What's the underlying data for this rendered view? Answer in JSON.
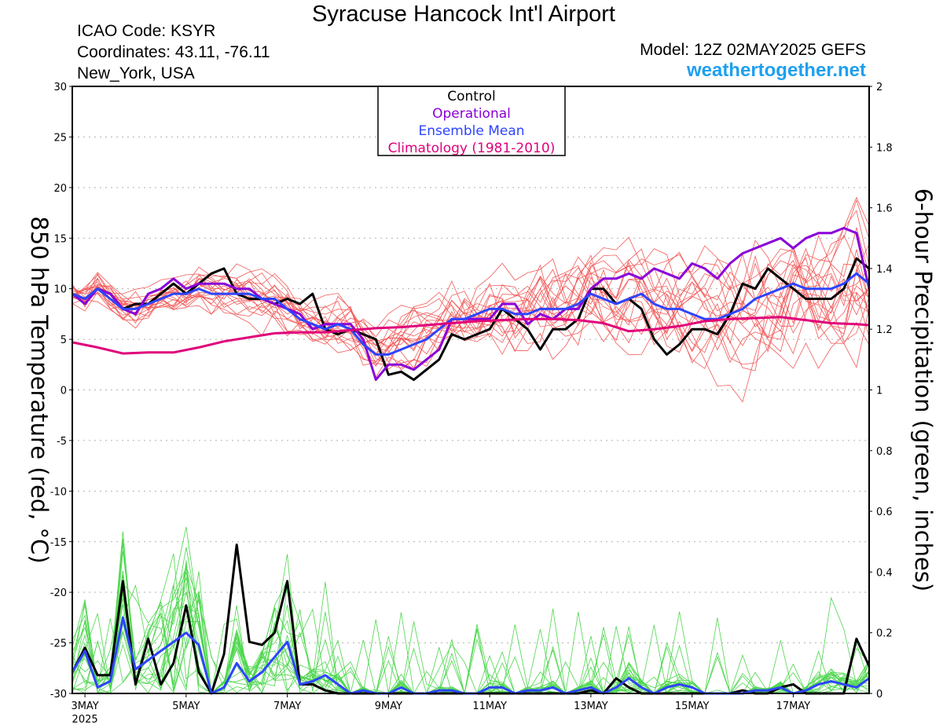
{
  "header": {
    "title": "Syracuse Hancock Int'l Airport",
    "icao": "ICAO Code: KSYR",
    "coords": "Coordinates: 43.11, -76.11",
    "location": "New_York, USA",
    "model": "Model: 12Z 02MAY2025 GEFS",
    "site": "weathertogether.net"
  },
  "chart_data": {
    "type": "line",
    "title": "Syracuse Hancock Int'l Airport",
    "ylabel": "850 hPa Temperature (red, °C)",
    "y2label": "6-hour Precipitation (green, inches)",
    "ylim": [
      -30,
      30
    ],
    "y2lim": [
      0,
      2
    ],
    "xlim": [
      2.75,
      18.5
    ],
    "yticks": [
      30,
      25,
      20,
      15,
      10,
      5,
      0,
      -5,
      -10,
      -15,
      -20,
      -25,
      -30
    ],
    "y2ticks": [
      2,
      1.8,
      1.6,
      1.4,
      1.2,
      1,
      0.8,
      0.6,
      0.4,
      0.2,
      0
    ],
    "xticks": [
      {
        "x": 3,
        "label": "3MAY"
      },
      {
        "x": 5,
        "label": "5MAY"
      },
      {
        "x": 7,
        "label": "7MAY"
      },
      {
        "x": 9,
        "label": "9MAY"
      },
      {
        "x": 11,
        "label": "11MAY"
      },
      {
        "x": 13,
        "label": "13MAY"
      },
      {
        "x": 15,
        "label": "15MAY"
      },
      {
        "x": 17,
        "label": "17MAY"
      }
    ],
    "year_label": "2025",
    "grid": true,
    "legend": {
      "position": "top-center",
      "entries": [
        {
          "name": "Control",
          "color": "#000000"
        },
        {
          "name": "Operational",
          "color": "#8a00d8"
        },
        {
          "name": "Ensemble Mean",
          "color": "#2e44ff"
        },
        {
          "name": "Climatology (1981-2010)",
          "color": "#e0007a"
        }
      ]
    },
    "colors": {
      "member_temp": "#f25a5a",
      "member_precip": "#4cd64c",
      "control": "#000000",
      "operational": "#8a00d8",
      "mean": "#2e44ff",
      "climatology": "#e0007a"
    },
    "series": [
      {
        "name": "Control",
        "axis": "temp",
        "x": [
          2.75,
          3.0,
          3.25,
          3.5,
          3.75,
          4.0,
          4.25,
          4.5,
          4.75,
          5.0,
          5.25,
          5.5,
          5.75,
          6.0,
          6.25,
          6.5,
          6.75,
          7.0,
          7.25,
          7.5,
          7.75,
          8.0,
          8.25,
          8.5,
          8.75,
          9.0,
          9.25,
          9.5,
          9.75,
          10.0,
          10.25,
          10.5,
          10.75,
          11.0,
          11.25,
          11.5,
          11.75,
          12.0,
          12.25,
          12.5,
          12.75,
          13.0,
          13.25,
          13.5,
          13.75,
          14.0,
          14.25,
          14.5,
          14.75,
          15.0,
          15.25,
          15.5,
          15.75,
          16.0,
          16.25,
          16.5,
          16.75,
          17.0,
          17.25,
          17.5,
          17.75,
          18.0,
          18.25,
          18.5
        ],
        "y": [
          9.5,
          9.0,
          10.0,
          9.5,
          8.0,
          8.5,
          8.5,
          9.5,
          10.5,
          9.5,
          10.5,
          11.5,
          12.0,
          9.5,
          9.0,
          9.0,
          8.5,
          9.0,
          8.5,
          9.5,
          6.0,
          5.5,
          6.0,
          5.5,
          5.0,
          1.5,
          1.8,
          1.0,
          2.0,
          3.0,
          5.5,
          5.0,
          5.5,
          6.0,
          8.0,
          7.0,
          6.0,
          4.0,
          6.0,
          6.0,
          7.0,
          10.0,
          10.0,
          8.5,
          9.0,
          8.0,
          5.0,
          3.5,
          4.5,
          6.0,
          6.0,
          5.5,
          7.5,
          10.5,
          10.0,
          12.0,
          11.0,
          10.0,
          9.0,
          9.0,
          9.0,
          10.0,
          13.0,
          12.0
        ]
      },
      {
        "name": "Operational",
        "axis": "temp",
        "x": [
          2.75,
          3.0,
          3.25,
          3.5,
          3.75,
          4.0,
          4.25,
          4.5,
          4.75,
          5.0,
          5.25,
          5.5,
          5.75,
          6.0,
          6.25,
          6.5,
          6.75,
          7.0,
          7.25,
          7.5,
          7.75,
          8.0,
          8.25,
          8.5,
          8.75,
          9.0,
          9.25,
          9.5,
          9.75,
          10.0,
          10.25,
          10.5,
          10.75,
          11.0,
          11.25,
          11.5,
          11.75,
          12.0,
          12.25,
          12.5,
          12.75,
          13.0,
          13.25,
          13.5,
          13.75,
          14.0,
          14.25,
          14.5,
          14.75,
          15.0,
          15.25,
          15.5,
          15.75,
          16.0,
          16.25,
          16.5,
          16.75,
          17.0,
          17.25,
          17.5,
          17.75,
          18.0,
          18.25,
          18.5
        ],
        "y": [
          9.5,
          8.5,
          10.0,
          9.5,
          8.0,
          7.5,
          9.5,
          10.0,
          11.0,
          10.0,
          10.5,
          10.5,
          10.5,
          10.0,
          10.0,
          9.0,
          8.5,
          8.0,
          7.5,
          6.0,
          6.5,
          6.5,
          6.5,
          5.0,
          1.0,
          2.5,
          2.5,
          2.0,
          3.0,
          4.0,
          7.0,
          7.0,
          7.0,
          7.0,
          8.5,
          8.5,
          6.5,
          7.5,
          7.0,
          8.0,
          8.0,
          10.0,
          11.0,
          11.0,
          11.5,
          11.0,
          12.0,
          11.5,
          11.0,
          12.5,
          12.0,
          11.0,
          12.5,
          13.5,
          14.0,
          14.5,
          15.0,
          14.0,
          15.0,
          15.5,
          15.5,
          16.0,
          15.5,
          10.0
        ]
      },
      {
        "name": "Ensemble Mean",
        "axis": "temp",
        "x": [
          2.75,
          3.0,
          3.25,
          3.5,
          3.75,
          4.0,
          4.25,
          4.5,
          4.75,
          5.0,
          5.25,
          5.5,
          5.75,
          6.0,
          6.25,
          6.5,
          6.75,
          7.0,
          7.25,
          7.5,
          7.75,
          8.0,
          8.25,
          8.5,
          8.75,
          9.0,
          9.25,
          9.5,
          9.75,
          10.0,
          10.25,
          10.5,
          10.75,
          11.0,
          11.25,
          11.5,
          11.75,
          12.0,
          12.25,
          12.5,
          12.75,
          13.0,
          13.25,
          13.5,
          13.75,
          14.0,
          14.25,
          14.5,
          14.75,
          15.0,
          15.25,
          15.5,
          15.75,
          16.0,
          16.25,
          16.5,
          16.75,
          17.0,
          17.25,
          17.5,
          17.75,
          18.0,
          18.25,
          18.5
        ],
        "y": [
          9.5,
          9.0,
          10.0,
          9.0,
          8.0,
          8.0,
          8.5,
          9.0,
          9.5,
          9.5,
          10.0,
          9.5,
          9.5,
          9.5,
          9.5,
          9.0,
          9.0,
          8.0,
          7.0,
          6.5,
          6.0,
          6.5,
          6.0,
          4.5,
          3.5,
          3.5,
          4.0,
          4.5,
          5.0,
          6.0,
          7.0,
          7.0,
          7.5,
          8.0,
          8.0,
          7.5,
          7.5,
          8.0,
          8.0,
          8.0,
          8.5,
          9.5,
          9.0,
          8.5,
          9.0,
          9.5,
          8.5,
          8.0,
          8.0,
          7.5,
          7.0,
          7.0,
          7.5,
          8.0,
          9.0,
          9.5,
          10.0,
          10.5,
          10.0,
          10.0,
          10.0,
          10.5,
          11.5,
          10.5
        ]
      },
      {
        "name": "Climatology (1981-2010)",
        "axis": "temp",
        "x": [
          2.75,
          3.25,
          3.75,
          4.25,
          4.75,
          5.25,
          5.75,
          6.25,
          6.75,
          7.25,
          7.75,
          8.25,
          8.75,
          9.25,
          9.75,
          10.25,
          10.75,
          11.25,
          11.75,
          12.25,
          12.75,
          13.25,
          13.75,
          14.25,
          14.75,
          15.25,
          15.75,
          16.25,
          16.75,
          17.25,
          17.75,
          18.25,
          18.5
        ],
        "y": [
          4.7,
          4.2,
          3.6,
          3.7,
          3.7,
          4.2,
          4.8,
          5.2,
          5.6,
          5.7,
          5.7,
          5.9,
          6.1,
          6.2,
          6.4,
          6.6,
          6.8,
          6.9,
          7.0,
          7.0,
          6.9,
          6.6,
          5.8,
          6.0,
          6.3,
          6.8,
          7.0,
          7.1,
          7.2,
          6.9,
          6.6,
          6.5,
          6.4
        ]
      },
      {
        "name": "Control",
        "axis": "precip",
        "x": [
          2.75,
          3.0,
          3.25,
          3.5,
          3.75,
          4.0,
          4.25,
          4.5,
          4.75,
          5.0,
          5.25,
          5.5,
          5.75,
          6.0,
          6.25,
          6.5,
          6.75,
          7.0,
          7.25,
          7.5,
          7.75,
          8.0,
          8.25,
          8.5,
          8.75,
          9.0,
          9.25,
          9.5,
          9.75,
          10.0,
          10.25,
          10.5,
          10.75,
          11.0,
          11.25,
          11.5,
          11.75,
          12.0,
          12.25,
          12.5,
          12.75,
          13.0,
          13.25,
          13.5,
          13.75,
          14.0,
          14.25,
          14.5,
          14.75,
          15.0,
          15.25,
          15.5,
          15.75,
          16.0,
          16.25,
          16.5,
          16.75,
          17.0,
          17.25,
          17.5,
          17.75,
          18.0,
          18.25,
          18.5
        ],
        "y": [
          0.07,
          0.15,
          0.06,
          0.06,
          0.37,
          0.03,
          0.18,
          0.03,
          0.1,
          0.29,
          0.07,
          0.0,
          0.13,
          0.49,
          0.17,
          0.16,
          0.2,
          0.37,
          0.03,
          0.03,
          0.01,
          0.0,
          0.0,
          0.0,
          0.0,
          0.0,
          0.0,
          0.0,
          0.0,
          0.0,
          0.0,
          0.0,
          0.0,
          0.0,
          0.0,
          0.0,
          0.0,
          0.0,
          0.0,
          0.0,
          0.0,
          0.01,
          0.0,
          0.05,
          0.02,
          0.0,
          0.0,
          0.0,
          0.0,
          0.0,
          0.0,
          0.0,
          0.0,
          0.01,
          0.0,
          0.0,
          0.02,
          0.03,
          0.0,
          0.0,
          0.0,
          0.0,
          0.18,
          0.09
        ]
      },
      {
        "name": "Ensemble Mean",
        "axis": "precip",
        "x": [
          2.75,
          3.0,
          3.25,
          3.5,
          3.75,
          4.0,
          4.25,
          4.5,
          4.75,
          5.0,
          5.25,
          5.5,
          5.75,
          6.0,
          6.25,
          6.5,
          6.75,
          7.0,
          7.25,
          7.5,
          7.75,
          8.0,
          8.25,
          8.5,
          8.75,
          9.0,
          9.25,
          9.5,
          9.75,
          10.0,
          10.25,
          10.5,
          10.75,
          11.0,
          11.25,
          11.5,
          11.75,
          12.0,
          12.25,
          12.5,
          12.75,
          13.0,
          13.25,
          13.5,
          13.75,
          14.0,
          14.25,
          14.5,
          14.75,
          15.0,
          15.25,
          15.5,
          15.75,
          16.0,
          16.25,
          16.5,
          16.75,
          17.0,
          17.25,
          17.5,
          17.75,
          18.0,
          18.25,
          18.5
        ],
        "y": [
          0.07,
          0.14,
          0.02,
          0.04,
          0.25,
          0.08,
          0.11,
          0.14,
          0.17,
          0.2,
          0.16,
          0.0,
          0.02,
          0.1,
          0.04,
          0.07,
          0.12,
          0.17,
          0.03,
          0.04,
          0.06,
          0.03,
          0.0,
          0.01,
          0.0,
          0.0,
          0.02,
          0.0,
          0.0,
          0.01,
          0.01,
          0.0,
          0.0,
          0.02,
          0.02,
          0.0,
          0.01,
          0.01,
          0.02,
          0.0,
          0.01,
          0.02,
          0.0,
          0.02,
          0.05,
          0.02,
          0.0,
          0.02,
          0.03,
          0.02,
          0.0,
          0.0,
          0.0,
          0.0,
          0.01,
          0.01,
          0.02,
          0.0,
          0.01,
          0.03,
          0.04,
          0.03,
          0.02,
          0.05
        ]
      }
    ],
    "members_note_free": true
  }
}
